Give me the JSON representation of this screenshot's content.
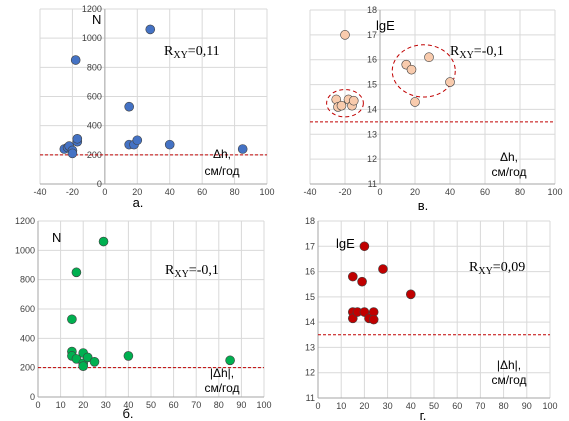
{
  "chart_data": [
    {
      "type": "scatter",
      "panel_label": "а.",
      "ylabel": "N",
      "xlabel": [
        "Δh,",
        "см/год"
      ],
      "corr": {
        "base": "R",
        "sub": "XY",
        "value": "=0,11"
      },
      "xlim": [
        -40,
        100
      ],
      "ylim": [
        0,
        1200
      ],
      "xticks": [
        -40,
        -20,
        0,
        20,
        40,
        60,
        80,
        100
      ],
      "yticks": [
        0,
        200,
        400,
        600,
        800,
        1000,
        1200
      ],
      "yaxis_at_x": 0,
      "threshold_y": 200,
      "marker_color": "#4472C4",
      "points": [
        [
          -25,
          240
        ],
        [
          -23,
          250
        ],
        [
          -22,
          260
        ],
        [
          -20,
          230
        ],
        [
          -20,
          210
        ],
        [
          -18,
          850
        ],
        [
          -17,
          290
        ],
        [
          -17,
          310
        ],
        [
          15,
          530
        ],
        [
          15,
          270
        ],
        [
          18,
          270
        ],
        [
          20,
          300
        ],
        [
          28,
          1060
        ],
        [
          40,
          270
        ],
        [
          85,
          240
        ]
      ]
    },
    {
      "type": "scatter",
      "panel_label": "в.",
      "ylabel": "lgE",
      "xlabel": [
        "Δh,",
        "см/год"
      ],
      "corr": {
        "base": "R",
        "sub": "XY",
        "value": "=-0,1"
      },
      "xlim": [
        -40,
        100
      ],
      "ylim": [
        11,
        18
      ],
      "xticks": [
        -40,
        -20,
        0,
        20,
        40,
        60,
        80,
        100
      ],
      "yticks": [
        11,
        12,
        13,
        14,
        15,
        16,
        17,
        18
      ],
      "yaxis_at_x": 0,
      "threshold_y": 13.5,
      "marker_color": "#F8CBAD",
      "points": [
        [
          -25,
          14.4
        ],
        [
          -24,
          14.1
        ],
        [
          -22,
          14.15
        ],
        [
          -20,
          17.0
        ],
        [
          -18,
          14.4
        ],
        [
          -16,
          14.15
        ],
        [
          -15,
          14.35
        ],
        [
          15,
          15.8
        ],
        [
          18,
          15.6
        ],
        [
          20,
          14.3
        ],
        [
          28,
          16.1
        ],
        [
          40,
          15.1
        ]
      ],
      "clusters": [
        {
          "cx": -20,
          "cy": 14.25,
          "rx": 10.5,
          "ry": 0.55
        },
        {
          "cx": 25,
          "cy": 15.55,
          "rx": 18,
          "ry": 1.05
        }
      ]
    },
    {
      "type": "scatter",
      "panel_label": "б.",
      "ylabel": "N",
      "xlabel": [
        "|Δh|,",
        "см/год"
      ],
      "corr": {
        "base": "R",
        "sub": "XY",
        "value": "=-0,1"
      },
      "xlim": [
        0,
        100
      ],
      "ylim": [
        0,
        1200
      ],
      "xticks": [
        0,
        10,
        20,
        30,
        40,
        50,
        60,
        70,
        80,
        90,
        100
      ],
      "yticks": [
        0,
        200,
        400,
        600,
        800,
        1000,
        1200
      ],
      "yaxis_at_x": 0,
      "threshold_y": 200,
      "marker_color": "#00B050",
      "points": [
        [
          15,
          530
        ],
        [
          15,
          310
        ],
        [
          15,
          280
        ],
        [
          17,
          850
        ],
        [
          17,
          260
        ],
        [
          20,
          300
        ],
        [
          20,
          230
        ],
        [
          20,
          210
        ],
        [
          22,
          270
        ],
        [
          25,
          240
        ],
        [
          29,
          1060
        ],
        [
          40,
          280
        ],
        [
          85,
          250
        ]
      ]
    },
    {
      "type": "scatter",
      "panel_label": "г.",
      "ylabel": "lgE",
      "xlabel": [
        "|Δh|,",
        "см/год"
      ],
      "corr": {
        "base": "R",
        "sub": "XY",
        "value": "=0,09"
      },
      "xlim": [
        0,
        100
      ],
      "ylim": [
        11,
        18
      ],
      "xticks": [
        0,
        10,
        20,
        30,
        40,
        50,
        60,
        70,
        80,
        90,
        100
      ],
      "yticks": [
        11,
        12,
        13,
        14,
        15,
        16,
        17,
        18
      ],
      "yaxis_at_x": 0,
      "threshold_y": 13.5,
      "marker_color": "#C00000",
      "points": [
        [
          15,
          15.8
        ],
        [
          15,
          14.4
        ],
        [
          15,
          14.15
        ],
        [
          17,
          14.4
        ],
        [
          19,
          15.6
        ],
        [
          20,
          14.4
        ],
        [
          20,
          17.0
        ],
        [
          22,
          14.15
        ],
        [
          24,
          14.4
        ],
        [
          24,
          14.1
        ],
        [
          28,
          16.1
        ],
        [
          40,
          15.1
        ]
      ]
    }
  ]
}
